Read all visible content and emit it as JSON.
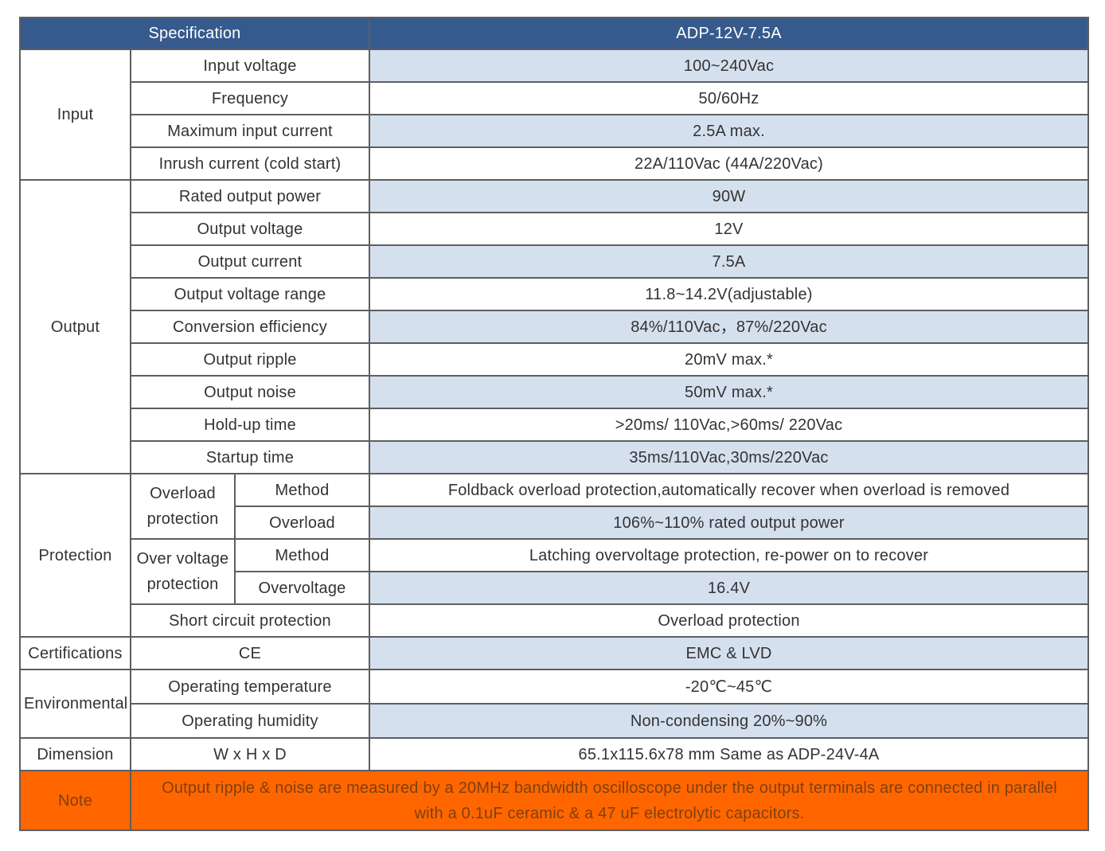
{
  "header": {
    "spec_label": "Specification",
    "model": "ADP-12V-7.5A"
  },
  "input": {
    "group": "Input",
    "rows": [
      {
        "param": "Input voltage",
        "value": "100~240Vac"
      },
      {
        "param": "Frequency",
        "value": "50/60Hz"
      },
      {
        "param": "Maximum input current",
        "value": "2.5A max."
      },
      {
        "param": "Inrush current (cold start)",
        "value": "22A/110Vac (44A/220Vac)"
      }
    ]
  },
  "output": {
    "group": "Output",
    "rows": [
      {
        "param": "Rated output power",
        "value": "90W"
      },
      {
        "param": "Output voltage",
        "value": "12V"
      },
      {
        "param": "Output current",
        "value": "7.5A"
      },
      {
        "param": "Output voltage range",
        "value": "11.8~14.2V(adjustable)"
      },
      {
        "param": "Conversion efficiency",
        "value": "84%/110Vac，87%/220Vac"
      },
      {
        "param": "Output ripple",
        "value": "20mV max.*"
      },
      {
        "param": "Output noise",
        "value": "50mV max.*"
      },
      {
        "param": "Hold-up time",
        "value": ">20ms/ 110Vac,>60ms/ 220Vac"
      },
      {
        "param": "Startup time",
        "value": "35ms/110Vac,30ms/220Vac"
      }
    ]
  },
  "protection": {
    "group": "Protection",
    "overload": {
      "label_line1": "Overload",
      "label_line2": "protection",
      "method_label": "Method",
      "method_value": "Foldback overload protection,automatically recover when overload is removed",
      "level_label": "Overload",
      "level_value": "106%~110% rated output power"
    },
    "overvoltage": {
      "label_line1": "Over voltage",
      "label_line2": "protection",
      "method_label": "Method",
      "method_value": "Latching overvoltage protection, re-power on to recover",
      "level_label": "Overvoltage",
      "level_value": "16.4V"
    },
    "short_circuit": {
      "param": "Short circuit protection",
      "value": "Overload protection"
    }
  },
  "certifications": {
    "group": "Certifications",
    "param": "CE",
    "value": "EMC & LVD"
  },
  "environmental": {
    "group": "Environmental",
    "rows": [
      {
        "param": "Operating temperature",
        "value": "-20℃~45℃"
      },
      {
        "param": "Operating humidity",
        "value": "Non-condensing 20%~90%"
      }
    ]
  },
  "dimension": {
    "group": "Dimension",
    "param": "W x H x D",
    "value": "65.1x115.6x78 mm Same as ADP-24V-4A"
  },
  "note": {
    "label": "Note",
    "line1": "Output ripple & noise are measured by a 20MHz bandwidth oscilloscope under the output terminals are connected in parallel",
    "line2": "with a 0.1uF ceramic & a 47 uF electrolytic capacitors."
  },
  "colors": {
    "header_bg": "#375a8d",
    "shaded_row": "#d5e0ef",
    "note_bg": "#ff6600",
    "border": "#5e5e5e"
  }
}
